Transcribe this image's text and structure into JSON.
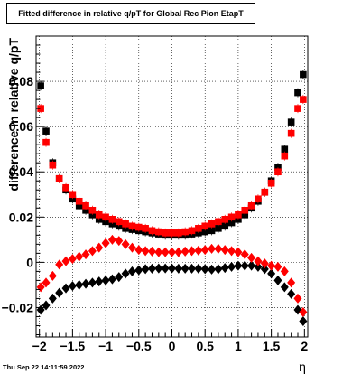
{
  "chart_data": {
    "type": "scatter",
    "title": "Fitted difference in relative q/pT for Global Rec Pion EtapT",
    "xlabel": "η",
    "ylabel": "difference in relative q/pT",
    "xlim": [
      -2.05,
      2.05
    ],
    "ylim": [
      -0.033,
      0.1
    ],
    "x_ticks": [
      -2,
      -1.5,
      -1,
      -0.5,
      0,
      0.5,
      1,
      1.5,
      2
    ],
    "x_tick_labels": [
      "−2",
      "−1.5",
      "−1",
      "−0.5",
      "0",
      "0.5",
      "1",
      "1.5",
      "2"
    ],
    "y_ticks": [
      -0.02,
      0,
      0.02,
      0.04,
      0.06,
      0.08
    ],
    "y_tick_labels": [
      "−0.02",
      "0",
      "0.02",
      "0.04",
      "0.06",
      "0.08"
    ],
    "grid": true,
    "series": [
      {
        "marker": "square",
        "color": "#000000",
        "x": [
          -1.98,
          -1.9,
          -1.8,
          -1.7,
          -1.6,
          -1.5,
          -1.4,
          -1.3,
          -1.2,
          -1.1,
          -1.0,
          -0.9,
          -0.8,
          -0.7,
          -0.6,
          -0.5,
          -0.4,
          -0.3,
          -0.2,
          -0.1,
          0.0,
          0.1,
          0.2,
          0.3,
          0.4,
          0.5,
          0.6,
          0.7,
          0.8,
          0.9,
          1.0,
          1.1,
          1.2,
          1.3,
          1.4,
          1.5,
          1.6,
          1.7,
          1.8,
          1.9,
          1.98
        ],
        "y": [
          0.078,
          0.058,
          0.044,
          0.037,
          0.032,
          0.028,
          0.025,
          0.023,
          0.021,
          0.019,
          0.018,
          0.017,
          0.016,
          0.015,
          0.0145,
          0.014,
          0.0135,
          0.013,
          0.0125,
          0.012,
          0.012,
          0.012,
          0.012,
          0.0125,
          0.013,
          0.0135,
          0.014,
          0.015,
          0.016,
          0.0175,
          0.019,
          0.021,
          0.024,
          0.027,
          0.031,
          0.036,
          0.042,
          0.05,
          0.062,
          0.075,
          0.083
        ]
      },
      {
        "marker": "square",
        "color": "#ff0000",
        "x": [
          -1.98,
          -1.9,
          -1.8,
          -1.7,
          -1.6,
          -1.5,
          -1.4,
          -1.3,
          -1.2,
          -1.1,
          -1.0,
          -0.9,
          -0.8,
          -0.7,
          -0.6,
          -0.5,
          -0.4,
          -0.3,
          -0.2,
          -0.1,
          0.0,
          0.1,
          0.2,
          0.3,
          0.4,
          0.5,
          0.6,
          0.7,
          0.8,
          0.9,
          1.0,
          1.1,
          1.2,
          1.3,
          1.4,
          1.5,
          1.6,
          1.7,
          1.8,
          1.9,
          1.98
        ],
        "y": [
          0.068,
          0.053,
          0.043,
          0.037,
          0.033,
          0.03,
          0.027,
          0.025,
          0.023,
          0.021,
          0.02,
          0.019,
          0.018,
          0.017,
          0.016,
          0.0155,
          0.015,
          0.014,
          0.0135,
          0.013,
          0.013,
          0.013,
          0.0135,
          0.014,
          0.015,
          0.016,
          0.017,
          0.018,
          0.019,
          0.02,
          0.021,
          0.023,
          0.025,
          0.028,
          0.031,
          0.035,
          0.04,
          0.047,
          0.057,
          0.068,
          0.072
        ]
      },
      {
        "marker": "diamond",
        "color": "#000000",
        "x": [
          -1.98,
          -1.9,
          -1.8,
          -1.7,
          -1.6,
          -1.5,
          -1.4,
          -1.3,
          -1.2,
          -1.1,
          -1.0,
          -0.9,
          -0.8,
          -0.7,
          -0.6,
          -0.5,
          -0.4,
          -0.3,
          -0.2,
          -0.1,
          0.0,
          0.1,
          0.2,
          0.3,
          0.4,
          0.5,
          0.6,
          0.7,
          0.8,
          0.9,
          1.0,
          1.1,
          1.2,
          1.3,
          1.4,
          1.5,
          1.6,
          1.7,
          1.8,
          1.9,
          1.98
        ],
        "y": [
          -0.021,
          -0.019,
          -0.016,
          -0.0135,
          -0.0115,
          -0.0105,
          -0.01,
          -0.0095,
          -0.009,
          -0.0085,
          -0.008,
          -0.0075,
          -0.0065,
          -0.005,
          -0.004,
          -0.0035,
          -0.003,
          -0.0028,
          -0.0027,
          -0.0027,
          -0.0027,
          -0.0028,
          -0.0028,
          -0.0028,
          -0.0028,
          -0.003,
          -0.0032,
          -0.003,
          -0.0025,
          -0.002,
          -0.0015,
          -0.0015,
          -0.0015,
          -0.002,
          -0.003,
          -0.005,
          -0.008,
          -0.011,
          -0.014,
          -0.021,
          -0.026
        ]
      },
      {
        "marker": "diamond",
        "color": "#ff0000",
        "x": [
          -1.98,
          -1.9,
          -1.8,
          -1.7,
          -1.6,
          -1.5,
          -1.4,
          -1.3,
          -1.2,
          -1.1,
          -1.0,
          -0.9,
          -0.8,
          -0.7,
          -0.6,
          -0.5,
          -0.4,
          -0.3,
          -0.2,
          -0.1,
          0.0,
          0.1,
          0.2,
          0.3,
          0.4,
          0.5,
          0.6,
          0.7,
          0.8,
          0.9,
          1.0,
          1.1,
          1.2,
          1.3,
          1.4,
          1.5,
          1.6,
          1.7,
          1.8,
          1.9,
          1.98
        ],
        "y": [
          -0.011,
          -0.009,
          -0.006,
          -0.001,
          0.0005,
          0.0015,
          0.0025,
          0.0035,
          0.005,
          0.0065,
          0.0085,
          0.01,
          0.0095,
          0.008,
          0.0065,
          0.0055,
          0.005,
          0.0048,
          0.0045,
          0.0045,
          0.0045,
          0.0045,
          0.0048,
          0.005,
          0.0052,
          0.0055,
          0.006,
          0.006,
          0.0055,
          0.005,
          0.0045,
          0.0035,
          0.002,
          0.0005,
          -0.0005,
          -0.0015,
          -0.002,
          -0.004,
          -0.009,
          -0.016,
          -0.022
        ]
      }
    ]
  },
  "title_text": "Fitted difference in relative q/pT for Global Rec Pion EtapT",
  "timestamp": "Thu Sep 22 14:11:59 2022"
}
